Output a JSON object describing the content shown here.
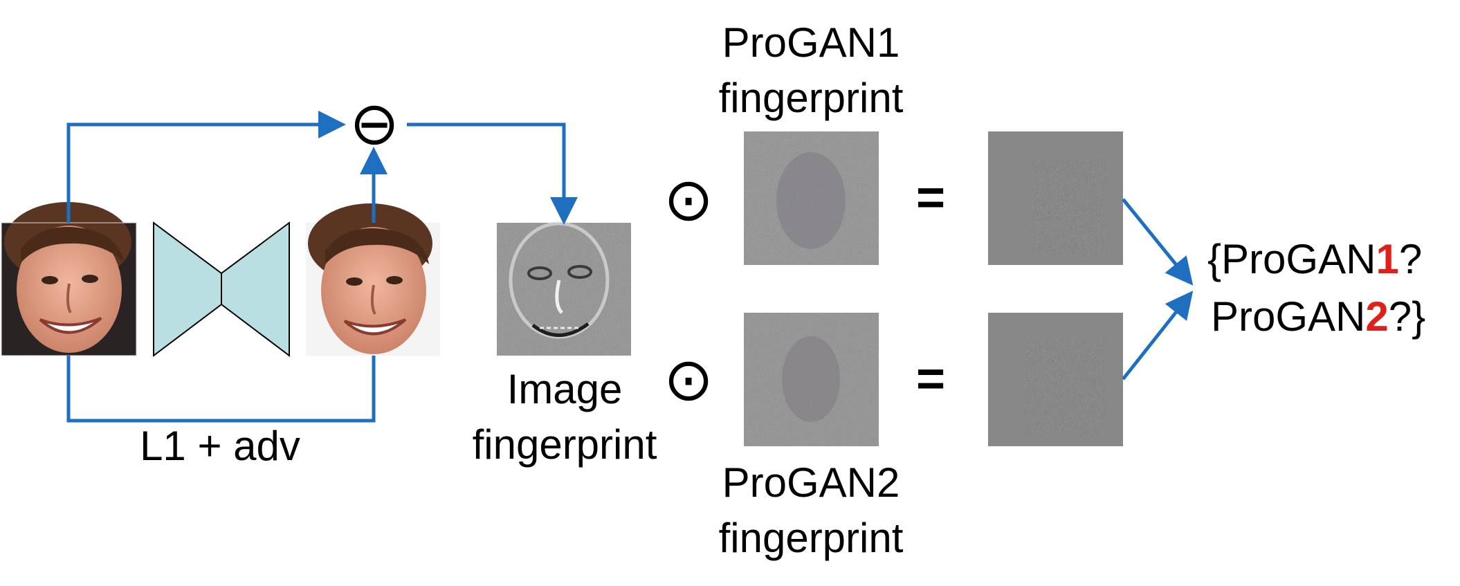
{
  "labels": {
    "progan1_line1": "ProGAN1",
    "progan1_line2": "fingerprint",
    "progan2_line1": "ProGAN2",
    "progan2_line2": "fingerprint",
    "image_fp_line1": "Image",
    "image_fp_line2": "fingerprint",
    "loss": "L1 + adv",
    "minus_symbol": "⊖",
    "dot_symbol": "⊙",
    "equals_symbol": "="
  },
  "result": {
    "line1_prefix": "{ProGAN",
    "line1_number": "1",
    "line1_suffix": "?",
    "line2_prefix": "ProGAN",
    "line2_number": "2",
    "line2_suffix": "?}"
  },
  "colors": {
    "arrow": "#1f6fc0",
    "autoencoder_fill": "#b9dfe3",
    "highlight_number": "#e0201b",
    "noise_gray": "#8a8a8a",
    "skin": "#e3a48a",
    "hair": "#5a3622"
  }
}
